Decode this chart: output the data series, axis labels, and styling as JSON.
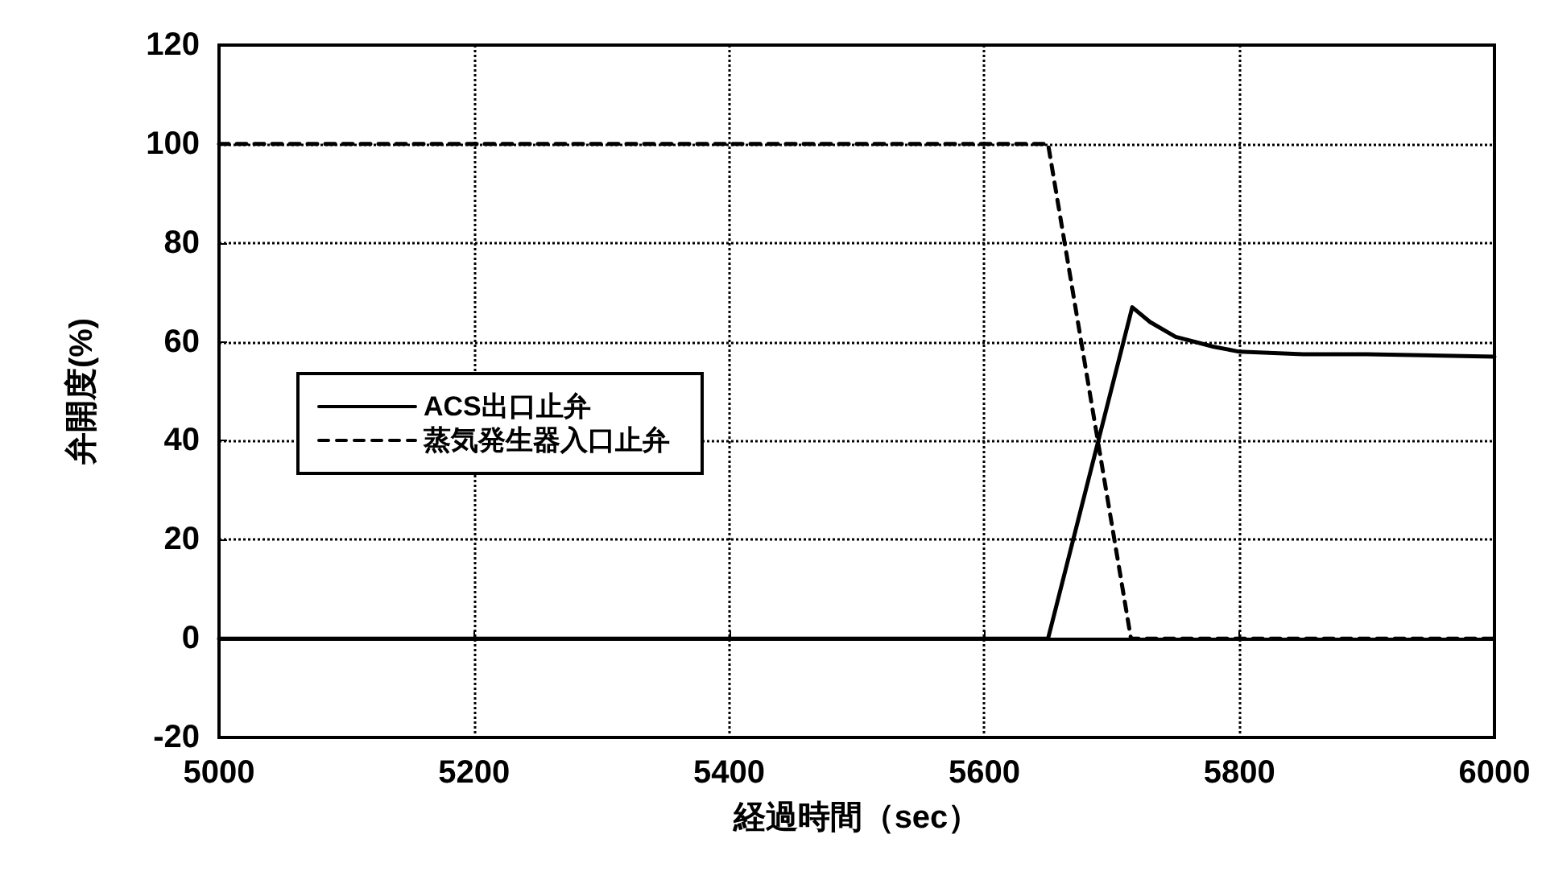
{
  "chart_data": {
    "type": "line",
    "xlabel": "経過時間（sec）",
    "ylabel": "弁開度(%)",
    "xlim": [
      5000,
      6000
    ],
    "xticks": [
      5000,
      5200,
      5400,
      5600,
      5800,
      6000
    ],
    "ylim": [
      -20,
      120
    ],
    "yticks": [
      -20,
      0,
      20,
      40,
      60,
      80,
      100,
      120
    ],
    "grid": true,
    "legend": "left",
    "marker": "none",
    "series": [
      {
        "name": "ACS出口止弁",
        "color": "#000000",
        "line_style": "solid",
        "x": [
          5000,
          5650,
          5716,
          5730,
          5750,
          5780,
          5800,
          5850,
          5900,
          6000
        ],
        "values": [
          0,
          0,
          67,
          64,
          61,
          59,
          58,
          57.5,
          57.5,
          57
        ]
      },
      {
        "name": "蒸気発生器入口止弁",
        "color": "#000000",
        "line_style": "dashed",
        "x": [
          5000,
          5650,
          5715,
          6000
        ],
        "values": [
          100,
          100,
          0,
          0
        ]
      }
    ]
  }
}
